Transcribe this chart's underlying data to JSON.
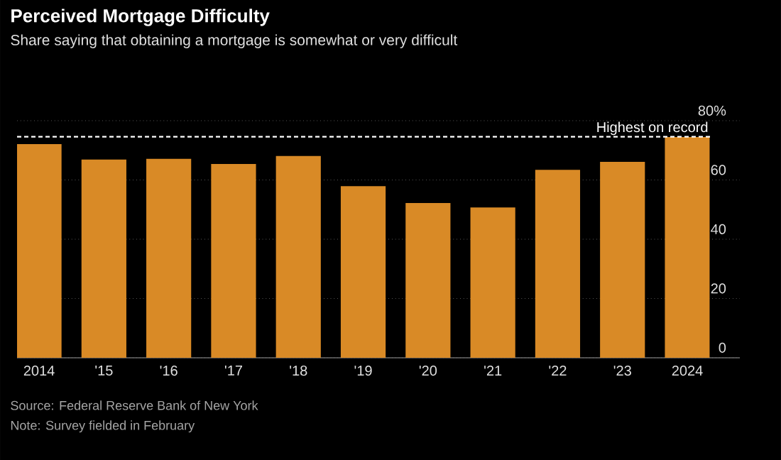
{
  "chart_data": {
    "type": "bar",
    "title": "Perceived Mortgage Difficulty",
    "subtitle": "Share saying that obtaining a mortgage is somewhat or very difficult",
    "categories": [
      "2014",
      "'15",
      "'16",
      "'17",
      "'18",
      "'19",
      "'20",
      "'21",
      "'22",
      "'23",
      "2024"
    ],
    "values": [
      72.1,
      66.9,
      67.1,
      65.4,
      68.1,
      57.9,
      52.2,
      50.7,
      63.4,
      66.1,
      74.5
    ],
    "color": "#d98a26",
    "ylim": [
      0,
      80
    ],
    "yticks": [
      0,
      20,
      40,
      60,
      {
        "value": 80,
        "label": "80%"
      }
    ],
    "grid": "y",
    "ref_lines": [
      {
        "axis": "y",
        "value": 74.6,
        "label": "Highest on record",
        "color": "#ffffff",
        "line_style": "dashed"
      }
    ],
    "annotations": [
      "Source: Federal Reserve Bank of New York",
      "Note: Survey fielded in February"
    ]
  }
}
